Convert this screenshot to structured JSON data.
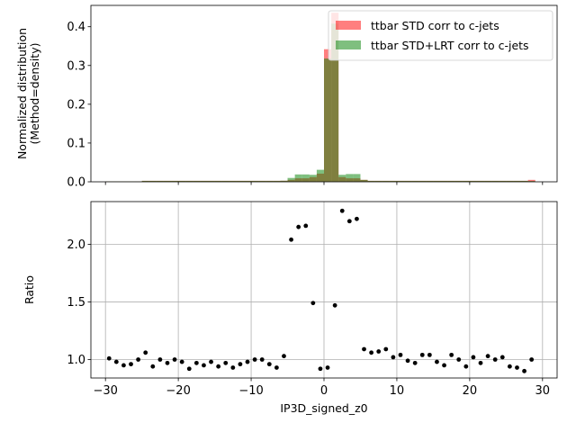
{
  "chart_data": [
    {
      "type": "bar",
      "title": "",
      "xlabel": "",
      "ylabel": "Normalized distribution\n(Method=density)",
      "xlim": [
        -32,
        32
      ],
      "ylim": [
        0,
        0.455
      ],
      "yticks": [
        0.0,
        0.1,
        0.2,
        0.3,
        0.4
      ],
      "ytick_labels": [
        "0.0",
        "0.1",
        "0.2",
        "0.3",
        "0.4"
      ],
      "grid": false,
      "legend": "top-right",
      "bin_edges": [
        -30,
        -29,
        -28,
        -27,
        -26,
        -25,
        -24,
        -23,
        -22,
        -21,
        -20,
        -19,
        -18,
        -17,
        -16,
        -15,
        -14,
        -13,
        -12,
        -11,
        -10,
        -9,
        -8,
        -7,
        -6,
        -5,
        -4,
        -3,
        -2,
        -1,
        0,
        1,
        2,
        3,
        4,
        5,
        6,
        7,
        8,
        9,
        10,
        11,
        12,
        13,
        14,
        15,
        16,
        17,
        18,
        19,
        20,
        21,
        22,
        23,
        24,
        25,
        26,
        27,
        28,
        29
      ],
      "series": [
        {
          "name": "ttbar STD corr to c-jets",
          "color": "#ff0000",
          "alpha": 0.5,
          "values": [
            0.0008,
            0.0008,
            0.0008,
            0.0008,
            0.0009,
            0.0025,
            0.0025,
            0.0025,
            0.0025,
            0.0025,
            0.0025,
            0.0025,
            0.0025,
            0.0025,
            0.0025,
            0.0025,
            0.0025,
            0.0025,
            0.0025,
            0.0025,
            0.0025,
            0.0025,
            0.0025,
            0.0025,
            0.0027,
            0.005,
            0.009,
            0.009,
            0.012,
            0.021,
            0.342,
            0.436,
            0.012,
            0.009,
            0.009,
            0.005,
            0.0025,
            0.0025,
            0.0025,
            0.0025,
            0.0025,
            0.0025,
            0.0025,
            0.0025,
            0.0025,
            0.0025,
            0.0025,
            0.0025,
            0.0025,
            0.0025,
            0.0025,
            0.0025,
            0.0025,
            0.0025,
            0.0025,
            0.0025,
            0.0025,
            0.0025,
            0.005
          ]
        },
        {
          "name": "ttbar STD+LRT corr to c-jets",
          "color": "#008000",
          "alpha": 0.5,
          "values": [
            0.0008,
            0.0008,
            0.0008,
            0.0008,
            0.0009,
            0.0025,
            0.0025,
            0.0025,
            0.0025,
            0.0025,
            0.0025,
            0.0025,
            0.0025,
            0.0025,
            0.0025,
            0.0025,
            0.0025,
            0.0025,
            0.0025,
            0.0025,
            0.0025,
            0.0025,
            0.0025,
            0.0025,
            0.0028,
            0.01,
            0.019,
            0.019,
            0.018,
            0.031,
            0.318,
            0.408,
            0.018,
            0.02,
            0.02,
            0.005,
            0.0025,
            0.0025,
            0.0025,
            0.0025,
            0.0025,
            0.0025,
            0.0025,
            0.0025,
            0.0025,
            0.0025,
            0.0025,
            0.0025,
            0.0025,
            0.0025,
            0.0025,
            0.0025,
            0.0025,
            0.0025,
            0.0025,
            0.0025,
            0.0025,
            0.0025,
            0.002
          ]
        }
      ]
    },
    {
      "type": "scatter",
      "title": "",
      "xlabel": "IP3D_signed_z0",
      "ylabel": "Ratio",
      "xlim": [
        -32,
        32
      ],
      "ylim": [
        0.84,
        2.37
      ],
      "xticks": [
        -30,
        -20,
        -10,
        0,
        10,
        20,
        30
      ],
      "xtick_labels": [
        "−30",
        "−20",
        "−10",
        "0",
        "10",
        "20",
        "30"
      ],
      "yticks": [
        1.0,
        1.5,
        2.0
      ],
      "ytick_labels": [
        "1.0",
        "1.5",
        "2.0"
      ],
      "grid": true,
      "marker_color": "#000000",
      "x": [
        -29.5,
        -28.5,
        -27.5,
        -26.5,
        -25.5,
        -24.5,
        -23.5,
        -22.5,
        -21.5,
        -20.5,
        -19.5,
        -18.5,
        -17.5,
        -16.5,
        -15.5,
        -14.5,
        -13.5,
        -12.5,
        -11.5,
        -10.5,
        -9.5,
        -8.5,
        -7.5,
        -6.5,
        -5.5,
        -4.5,
        -3.5,
        -2.5,
        -1.5,
        -0.5,
        0.5,
        1.5,
        2.5,
        3.5,
        4.5,
        5.5,
        6.5,
        7.5,
        8.5,
        9.5,
        10.5,
        11.5,
        12.5,
        13.5,
        14.5,
        15.5,
        16.5,
        17.5,
        18.5,
        19.5,
        20.5,
        21.5,
        22.5,
        23.5,
        24.5,
        25.5,
        26.5,
        27.5,
        28.5
      ],
      "y": [
        1.01,
        0.98,
        0.95,
        0.96,
        1.0,
        1.06,
        0.94,
        1.0,
        0.97,
        1.0,
        0.98,
        0.92,
        0.97,
        0.95,
        0.98,
        0.94,
        0.97,
        0.93,
        0.96,
        0.98,
        1.0,
        1.0,
        0.96,
        0.93,
        1.03,
        2.04,
        2.15,
        2.16,
        1.49,
        0.92,
        0.93,
        1.47,
        2.29,
        2.2,
        2.22,
        1.09,
        1.06,
        1.07,
        1.09,
        1.02,
        1.04,
        0.99,
        0.97,
        1.04,
        1.04,
        0.98,
        0.95,
        1.04,
        1.0,
        0.94,
        1.02,
        0.97,
        1.03,
        1.0,
        1.02,
        0.94,
        0.93,
        0.9,
        1.0
      ]
    }
  ]
}
